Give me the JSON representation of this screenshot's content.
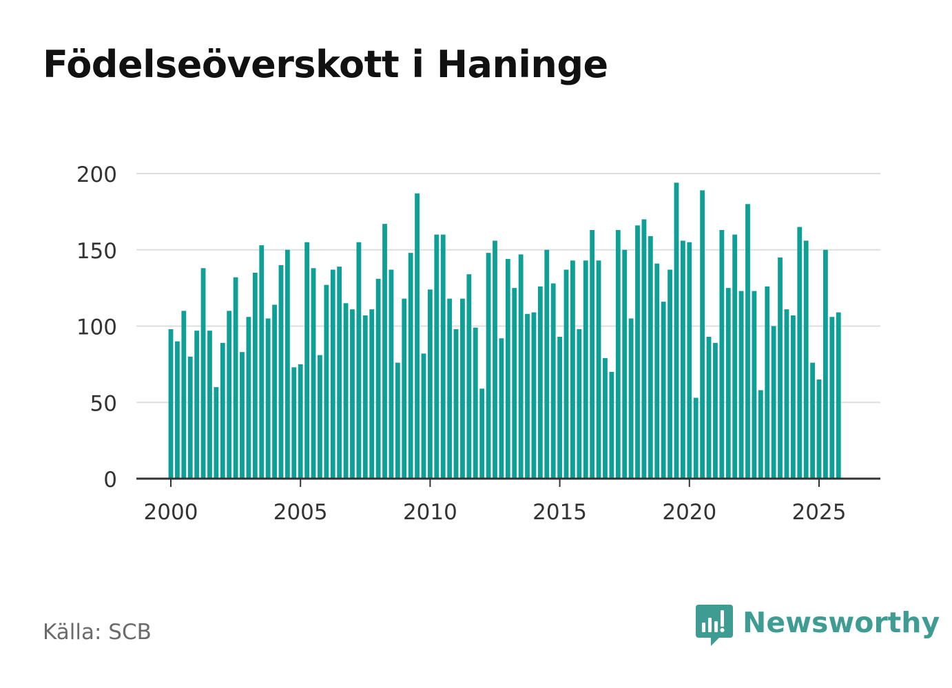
{
  "title": "Födelseöverskott i Haninge",
  "source": "Källa: SCB",
  "brand": {
    "name": "Newsworthy",
    "icon": "newsworthy-logo-icon",
    "color": "#3f9c92"
  },
  "colors": {
    "bar": "#0ea096",
    "grid": "#dddddd",
    "axis": "#333333",
    "tick_text": "#333333"
  },
  "chart_data": {
    "type": "bar",
    "title": "Födelseöverskott i Haninge",
    "xlabel": "",
    "ylabel": "",
    "ylim": [
      0,
      200
    ],
    "xlim": [
      1999.6,
      2027.3
    ],
    "yticks": [
      0,
      50,
      100,
      150,
      200
    ],
    "xticks": [
      2000,
      2005,
      2010,
      2015,
      2020,
      2025
    ],
    "grid": true,
    "legend": "none",
    "bar_interval": 0.25,
    "start": 2000.0,
    "values": [
      98,
      90,
      110,
      80,
      97,
      138,
      97,
      60,
      89,
      110,
      132,
      83,
      106,
      135,
      153,
      105,
      114,
      140,
      150,
      73,
      75,
      155,
      138,
      81,
      127,
      137,
      139,
      115,
      111,
      155,
      107,
      111,
      131,
      167,
      137,
      76,
      118,
      148,
      187,
      82,
      124,
      160,
      160,
      118,
      98,
      118,
      134,
      99,
      59,
      148,
      156,
      92,
      144,
      125,
      147,
      108,
      109,
      126,
      150,
      128,
      93,
      137,
      143,
      98,
      143,
      163,
      143,
      79,
      70,
      163,
      150,
      105,
      166,
      170,
      159,
      141,
      116,
      137,
      194,
      156,
      155,
      53,
      189,
      93,
      89,
      163,
      125,
      160,
      123,
      180,
      123,
      58,
      126,
      100,
      145,
      111,
      107,
      165,
      156,
      76,
      65,
      150,
      106,
      109
    ]
  }
}
